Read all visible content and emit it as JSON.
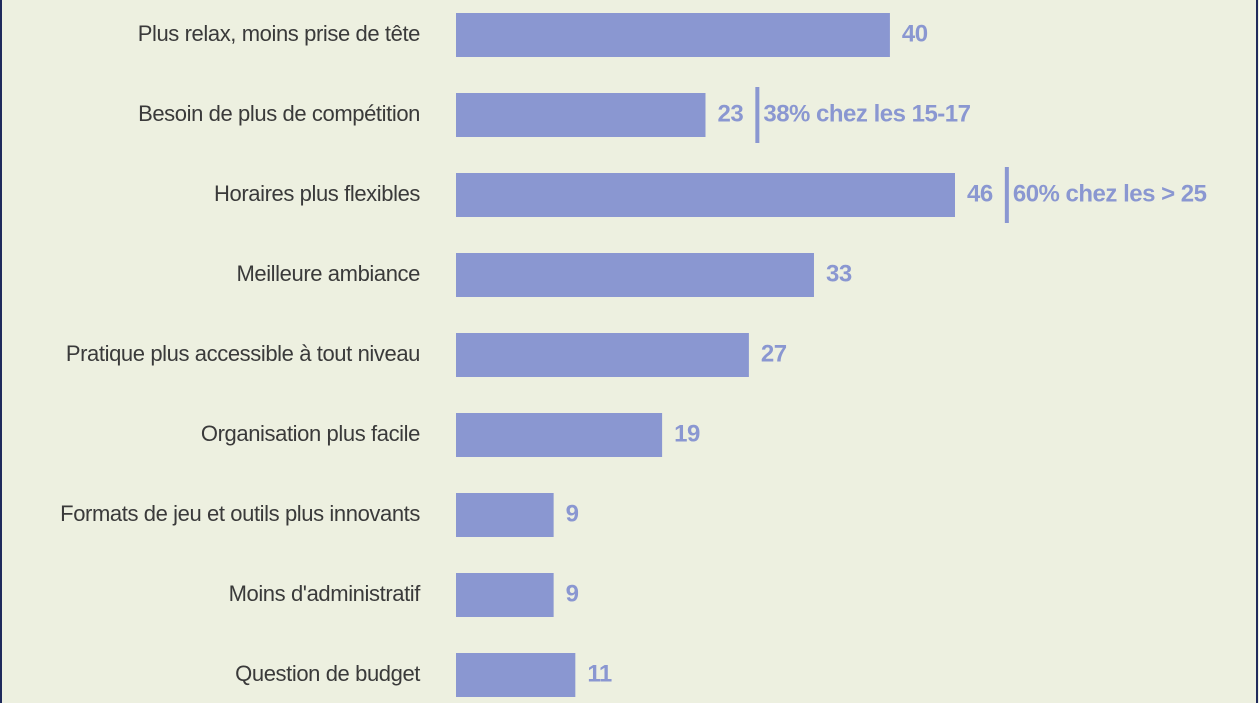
{
  "chart_data": {
    "type": "barh",
    "categories": [
      "Plus relax, moins prise de tête",
      "Besoin de plus de compétition",
      "Horaires plus flexibles",
      "Meilleure ambiance",
      "Pratique plus accessible à tout niveau",
      "Organisation plus facile",
      "Formats de jeu et outils plus innovants",
      "Moins d'administratif",
      "Question de budget"
    ],
    "values": [
      40,
      23,
      46,
      33,
      27,
      19,
      9,
      9,
      11
    ],
    "color": "#8a97d1",
    "annotations": [
      {
        "category": "Besoin de plus de compétition",
        "text": "38% chez les 15-17"
      },
      {
        "category": "Horaires plus flexibles",
        "text": "60% chez les > 25"
      }
    ]
  }
}
